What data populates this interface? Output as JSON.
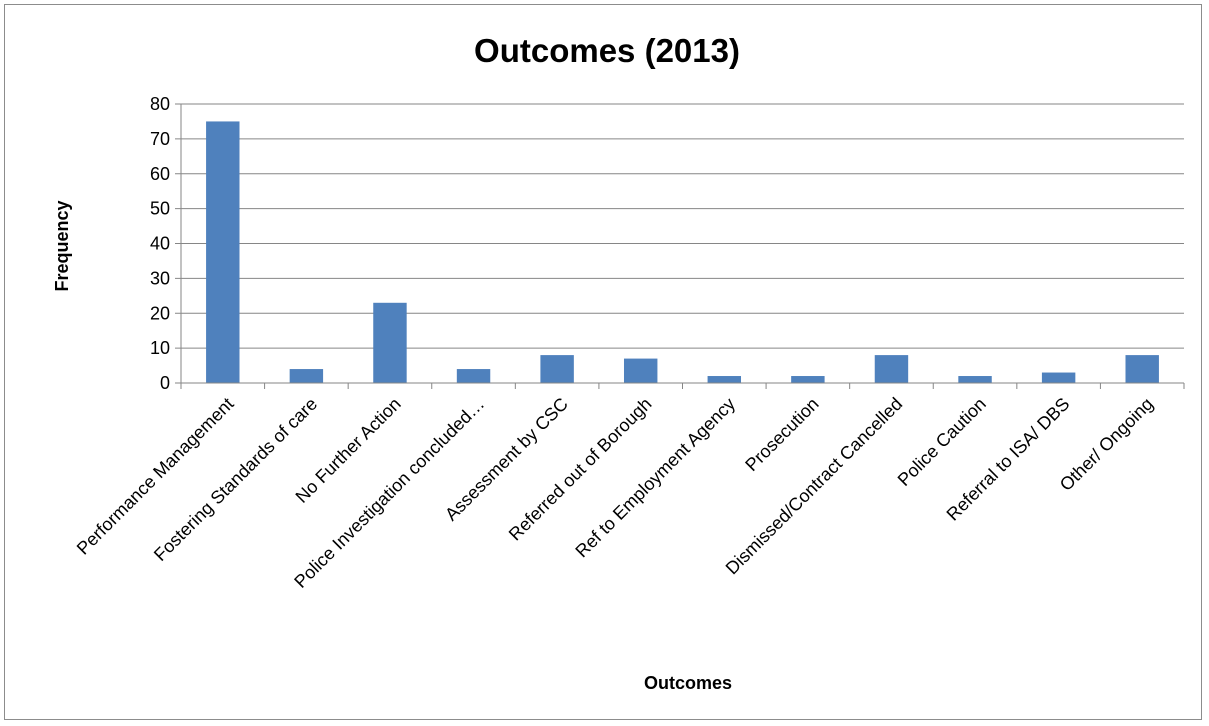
{
  "chart_data": {
    "type": "bar",
    "title": "Outcomes (2013)",
    "xlabel": "Outcomes",
    "ylabel": "Frequency",
    "ylim": [
      0,
      80
    ],
    "yticks": [
      0,
      10,
      20,
      30,
      40,
      50,
      60,
      70,
      80
    ],
    "grid": true,
    "legend": "none",
    "categories": [
      "Performance Management",
      "Fostering Standards of care",
      "No Further Action",
      "Police Investigation concluded…",
      "Assessment by CSC",
      "Referred out of Borough",
      "Ref to Employment Agency",
      "Prosecution",
      "Dismissed/Contract Cancelled",
      "Police Caution",
      "Referral to ISA/ DBS",
      "Other/ Ongoing"
    ],
    "values": [
      75,
      4,
      23,
      4,
      8,
      7,
      2,
      2,
      8,
      2,
      3,
      8
    ],
    "bar_color": "#4f81bd"
  }
}
